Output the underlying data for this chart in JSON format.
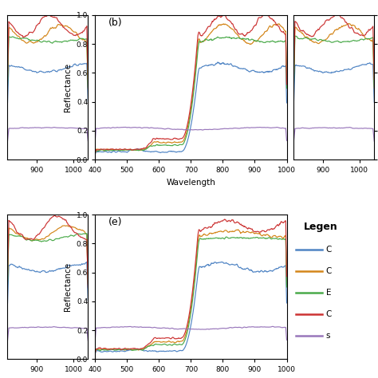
{
  "colors": [
    "#4f84c4",
    "#d4861a",
    "#4aaa4a",
    "#cc3333",
    "#9977bb"
  ],
  "legend_labels": [
    "C",
    "C",
    "E",
    "C",
    "s"
  ],
  "panel_b_label": "(b)",
  "panel_e_label": "(e)",
  "legend_title": "Legen",
  "xlabel": "Wavelength",
  "ylabel": "Reflectance",
  "ylim": [
    0.0,
    1.0
  ],
  "yticks": [
    0.0,
    0.2,
    0.4,
    0.6,
    0.8,
    1.0
  ],
  "xticks_full": [
    400,
    500,
    600,
    700,
    800,
    900,
    1000
  ],
  "xticks_partial": [
    900,
    1000
  ],
  "xlim_full": [
    400,
    1000
  ],
  "xlim_partial": [
    820,
    1040
  ]
}
